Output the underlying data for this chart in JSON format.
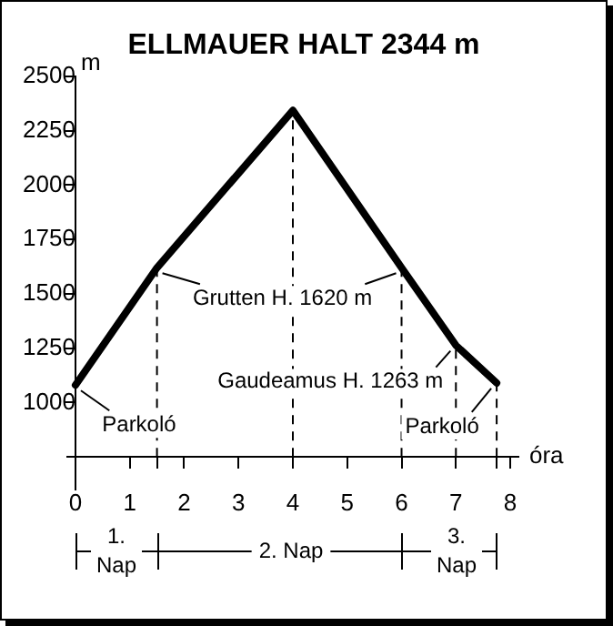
{
  "chart_data": {
    "type": "line",
    "title": "ELLMAUER HALT 2344 m",
    "xlabel": "óra",
    "ylabel": "m",
    "x": [
      0,
      1.5,
      4,
      6,
      7,
      7.75
    ],
    "series": [
      {
        "color": "#000000",
        "values": [
          1080,
          1620,
          2344,
          1620,
          1263,
          1090
        ]
      }
    ],
    "xlim": [
      -0.15,
      8.15
    ],
    "xticks": [
      0,
      1,
      {
        "value": 1.5,
        "label": null
      },
      2,
      3,
      4,
      5,
      6,
      7,
      {
        "value": 7.75,
        "label": null
      },
      8
    ],
    "ylim": [
      600,
      2500
    ],
    "yticks": [
      1000,
      1250,
      1500,
      1750,
      2000,
      2250,
      2500
    ],
    "ref_lines": [
      {
        "axis": "x",
        "value": 1.5,
        "label": null,
        "line_style": "dashed"
      },
      {
        "axis": "x",
        "value": 4,
        "label": null,
        "line_style": "dashed"
      },
      {
        "axis": "x",
        "value": 6,
        "label": null,
        "line_style": "dashed"
      },
      {
        "axis": "x",
        "value": 7,
        "label": null,
        "line_style": "dashed"
      },
      {
        "axis": "x",
        "value": 7.75,
        "label": null,
        "line_style": "dashed"
      }
    ],
    "annotations": [
      {
        "text": "Grutten H. 1620 m",
        "x": 1.5,
        "y": 1620
      },
      {
        "text": "Gaudeamus H. 1263 m",
        "x": 7,
        "y": 1263
      },
      {
        "text": "Parkoló",
        "x": 0,
        "y": 1080
      },
      {
        "text": "Parkoló",
        "x": 7.75,
        "y": 1090
      },
      "1. Nap",
      "2. Nap",
      "3. Nap"
    ],
    "grid": false,
    "legend": false,
    "marker": "none",
    "line_style": "solid"
  }
}
